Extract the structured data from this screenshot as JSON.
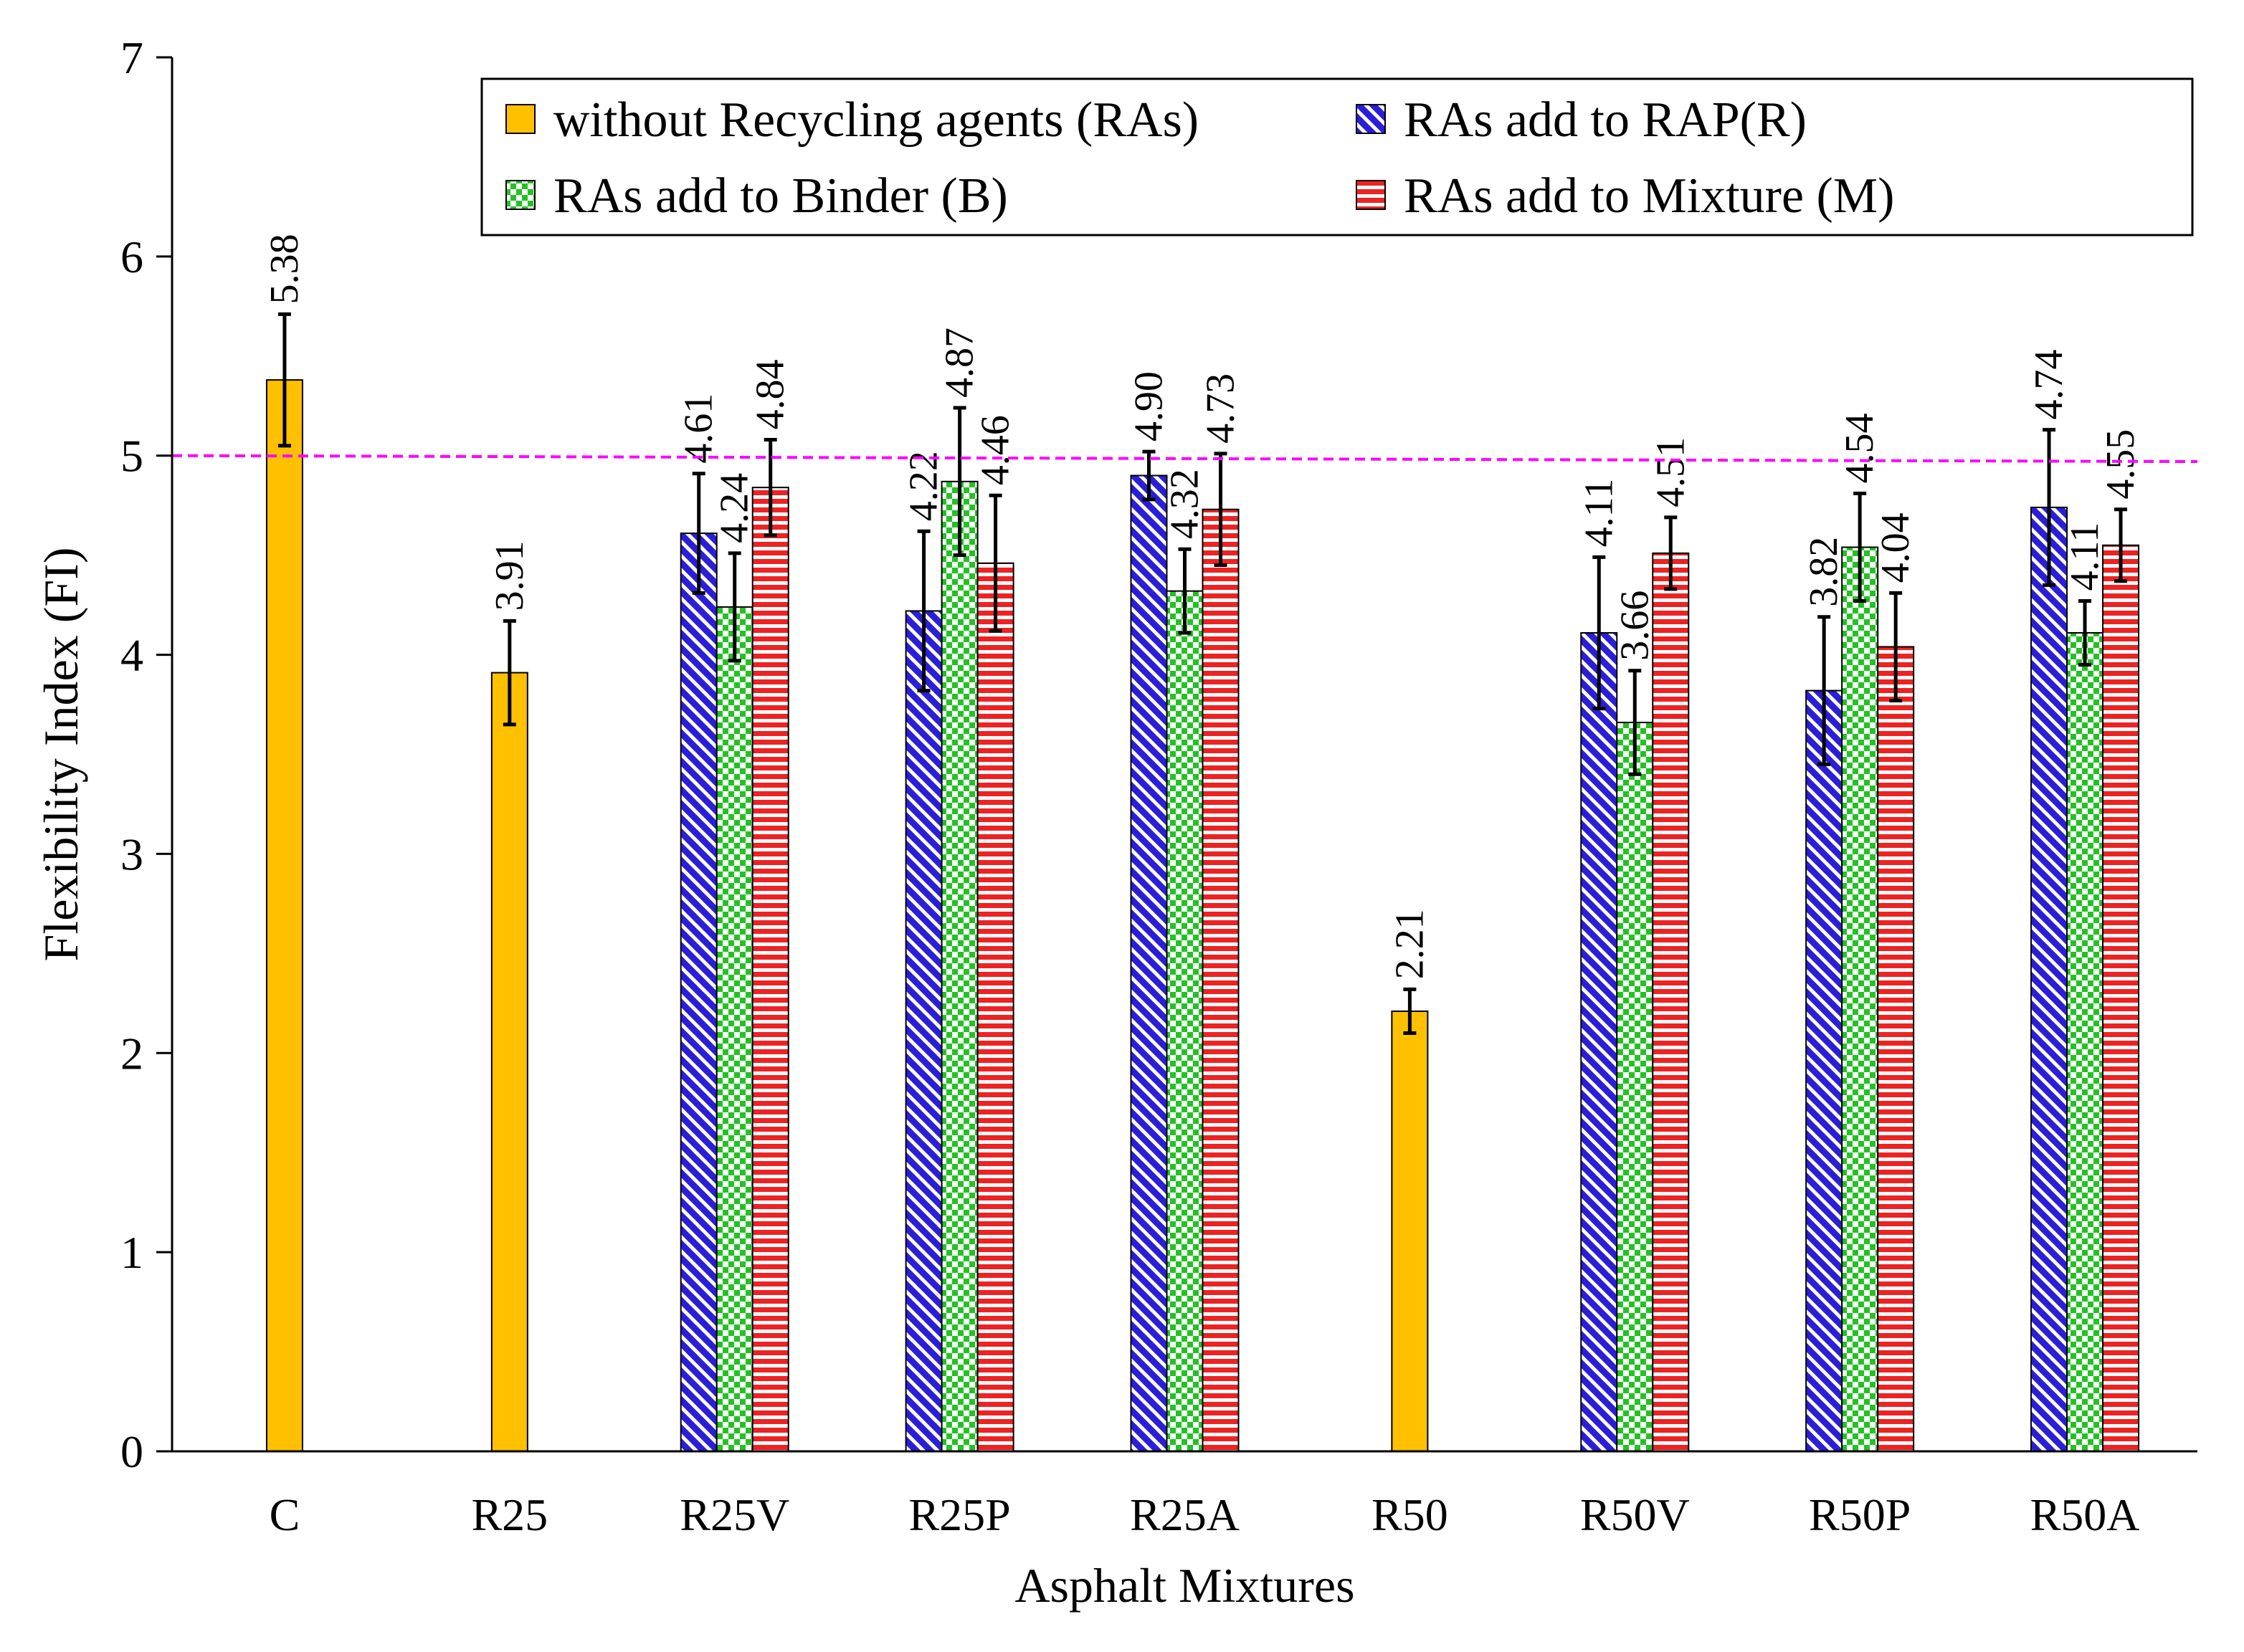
{
  "chart_data": {
    "type": "bar",
    "xlabel": "Asphalt Mixtures",
    "ylabel": "Flexibility Index (FI)",
    "ylim": [
      0,
      7
    ],
    "yticks": [
      0,
      1,
      2,
      3,
      4,
      5,
      6,
      7
    ],
    "reference_line": {
      "value": 5.0,
      "color": "#ff00ff",
      "style": "dashed"
    },
    "categories": [
      "C",
      "R25",
      "R25V",
      "R25P",
      "R25A",
      "R50",
      "R50V",
      "R50P",
      "R50A"
    ],
    "legend_position": "top-right",
    "series": [
      {
        "name": "without Recycling agents (RAs)",
        "key": "none",
        "color": "#ffc000",
        "pattern": "solid",
        "values": [
          5.38,
          3.91,
          null,
          null,
          null,
          2.21,
          null,
          null,
          null
        ],
        "errors": [
          0.33,
          0.26,
          null,
          null,
          null,
          0.11,
          null,
          null,
          null
        ],
        "labels": [
          "5.38",
          "3.91",
          null,
          null,
          null,
          "2.21",
          null,
          null,
          null
        ]
      },
      {
        "name": "RAs add to RAP(R)",
        "key": "R",
        "color": "#2a1fd6",
        "pattern": "diagonal",
        "values": [
          null,
          null,
          4.61,
          4.22,
          4.9,
          null,
          4.11,
          3.82,
          4.74
        ],
        "errors": [
          null,
          null,
          0.3,
          0.4,
          0.12,
          null,
          0.38,
          0.37,
          0.39
        ],
        "labels": [
          null,
          null,
          "4.61",
          "4.22",
          "4.90",
          null,
          "4.11",
          "3.82",
          "4.74"
        ]
      },
      {
        "name": "RAs add to Binder (B)",
        "key": "B",
        "color": "#22c222",
        "pattern": "checker",
        "values": [
          null,
          null,
          4.24,
          4.87,
          4.32,
          null,
          3.66,
          4.54,
          4.11
        ],
        "errors": [
          null,
          null,
          0.27,
          0.37,
          0.21,
          null,
          0.26,
          0.27,
          0.16
        ],
        "labels": [
          null,
          null,
          "4.24",
          "4.87",
          "4.32",
          null,
          "3.66",
          "4.54",
          "4.11"
        ]
      },
      {
        "name": "RAs add to Mixture (M)",
        "key": "M",
        "color": "#ee2222",
        "pattern": "horizontal",
        "values": [
          null,
          null,
          4.84,
          4.46,
          4.73,
          null,
          4.51,
          4.04,
          4.55
        ],
        "errors": [
          null,
          null,
          0.24,
          0.34,
          0.28,
          null,
          0.18,
          0.27,
          0.18
        ],
        "labels": [
          null,
          null,
          "4.84",
          "4.46",
          "4.73",
          null,
          "4.51",
          "4.04",
          "4.55"
        ]
      }
    ]
  }
}
